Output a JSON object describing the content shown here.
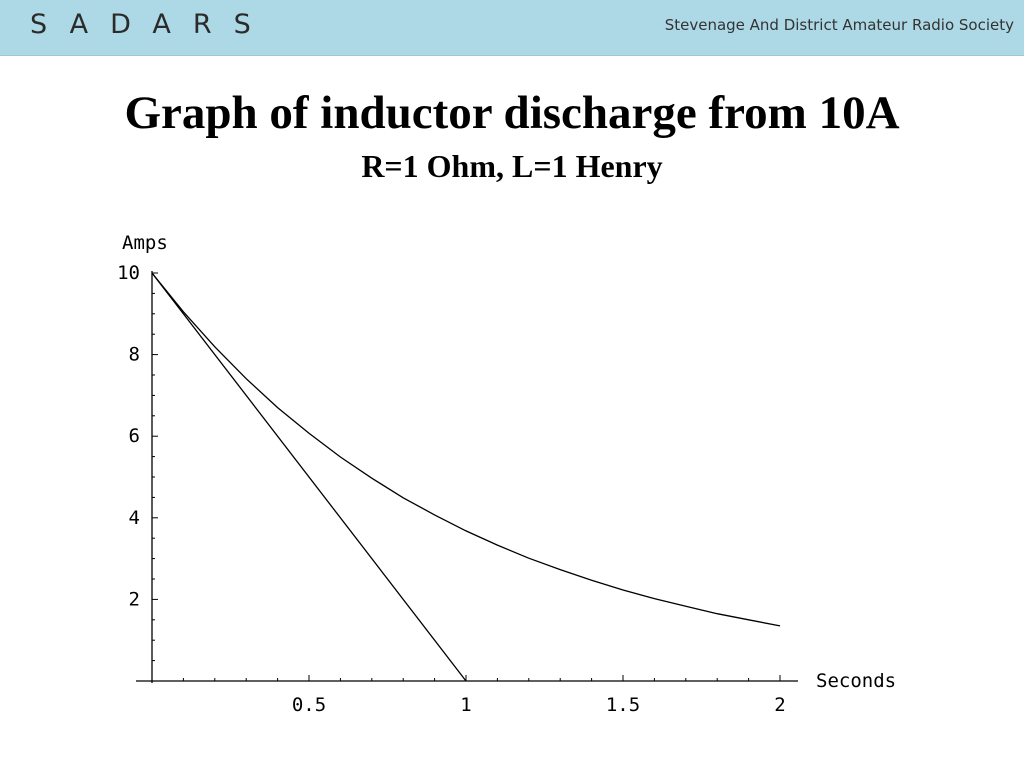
{
  "header": {
    "logo": "SADARS",
    "society_name": "Stevenage And District Amateur Radio Society",
    "bg_color": "#add8e6"
  },
  "slide": {
    "title": "Graph of inductor discharge from 10A",
    "subtitle": "R=1 Ohm, L=1 Henry"
  },
  "chart_data": {
    "type": "line",
    "xlabel": "Seconds",
    "ylabel": "Amps",
    "xlim": [
      0,
      2
    ],
    "ylim": [
      0,
      10
    ],
    "x_ticks": [
      {
        "value": 0.5,
        "label": "0.5"
      },
      {
        "value": 1,
        "label": "1"
      },
      {
        "value": 1.5,
        "label": "1.5"
      },
      {
        "value": 2,
        "label": "2"
      }
    ],
    "y_ticks": [
      {
        "value": 2,
        "label": "2"
      },
      {
        "value": 4,
        "label": "4"
      },
      {
        "value": 6,
        "label": "6"
      },
      {
        "value": 8,
        "label": "8"
      },
      {
        "value": 10,
        "label": "10"
      }
    ],
    "grid": false,
    "series": [
      {
        "kind": "exponential decay",
        "x": [
          0,
          0.1,
          0.2,
          0.3,
          0.4,
          0.5,
          0.6,
          0.7,
          0.8,
          0.9,
          1.0,
          1.1,
          1.2,
          1.3,
          1.4,
          1.5,
          1.6,
          1.7,
          1.8,
          1.9,
          2.0
        ],
        "y": [
          10,
          9.05,
          8.19,
          7.41,
          6.7,
          6.07,
          5.49,
          4.97,
          4.49,
          4.07,
          3.68,
          3.33,
          3.01,
          2.73,
          2.47,
          2.23,
          2.02,
          1.83,
          1.65,
          1.5,
          1.35
        ]
      },
      {
        "kind": "initial slope tangent",
        "x": [
          0,
          1
        ],
        "y": [
          10,
          0
        ]
      }
    ]
  }
}
